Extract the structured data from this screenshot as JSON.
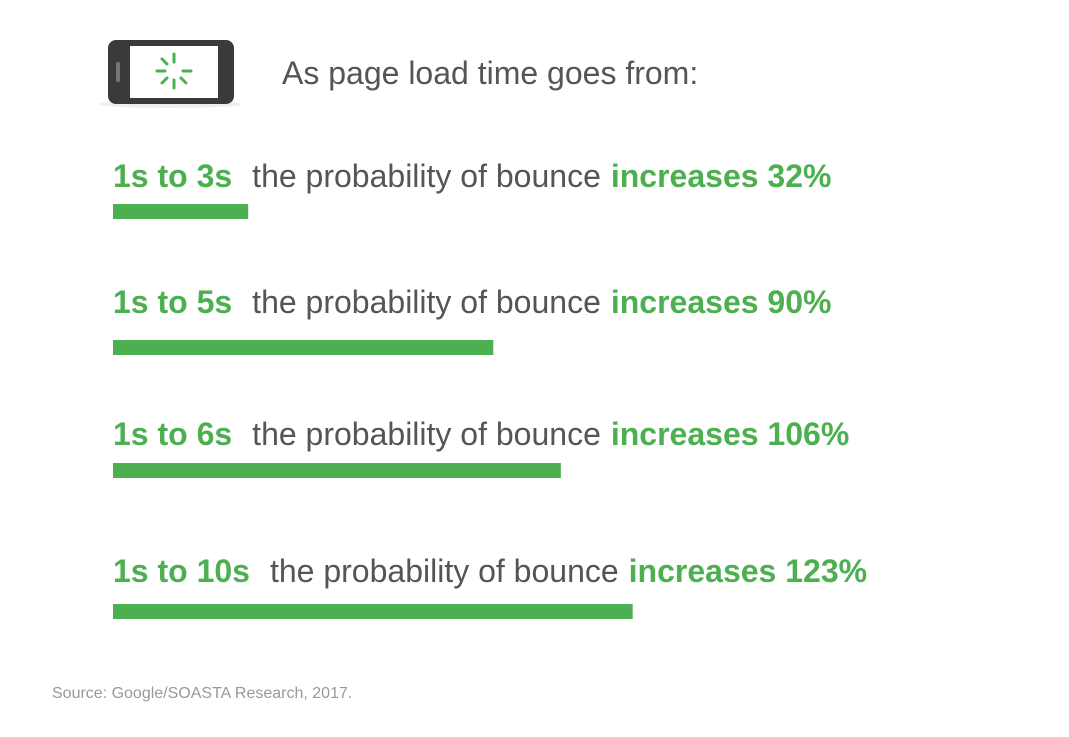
{
  "chart_data": {
    "type": "bar",
    "title": "As page load time goes from:",
    "categories": [
      "1s to 3s",
      "1s to 5s",
      "1s to 6s",
      "1s to 10s"
    ],
    "phrase": "the probability of bounce",
    "values": [
      32,
      90,
      106,
      123
    ],
    "value_labels": [
      "increases 32%",
      "increases 90%",
      "increases 106%",
      "increases 123%"
    ],
    "color": "#4caf50",
    "source": "Source: Google/SOASTA Research, 2017."
  }
}
